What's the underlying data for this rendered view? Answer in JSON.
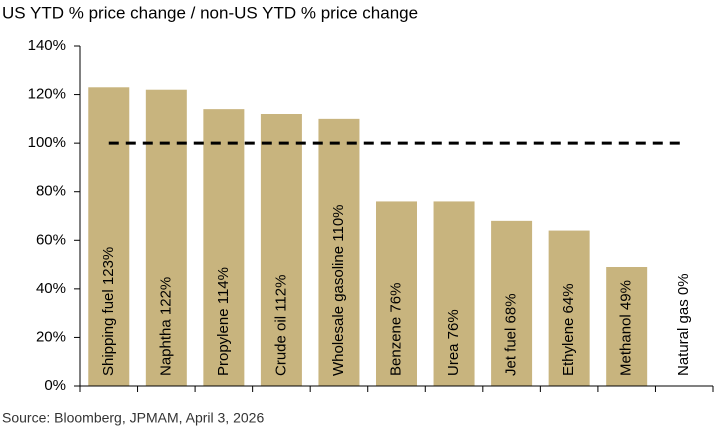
{
  "chart_data": {
    "type": "bar",
    "title": "US YTD % price change / non-US YTD % price change",
    "categories": [
      "Shipping fuel",
      "Naphtha",
      "Propylene",
      "Crude oil",
      "Wholesale gasoline",
      "Benzene",
      "Urea",
      "Jet fuel",
      "Ethylene",
      "Methanol",
      "Natural gas"
    ],
    "values": [
      123,
      122,
      114,
      112,
      110,
      76,
      76,
      68,
      64,
      49,
      0
    ],
    "value_labels": [
      "123%",
      "122%",
      "114%",
      "112%",
      "110%",
      "76%",
      "76%",
      "68%",
      "64%",
      "49%",
      "0%"
    ],
    "color": "#c8b47e",
    "reference_line": 100,
    "ylim": [
      0,
      140
    ],
    "yticks": [
      {
        "value": 0,
        "label": "0%"
      },
      {
        "value": 20,
        "label": "20%"
      },
      {
        "value": 40,
        "label": "40%"
      },
      {
        "value": 60,
        "label": "60%"
      },
      {
        "value": 80,
        "label": "80%"
      },
      {
        "value": 100,
        "label": "100%"
      },
      {
        "value": 120,
        "label": "120%"
      },
      {
        "value": 140,
        "label": "140%"
      }
    ],
    "source": "Source: Bloomberg, JPMAM, April 3, 2026"
  }
}
